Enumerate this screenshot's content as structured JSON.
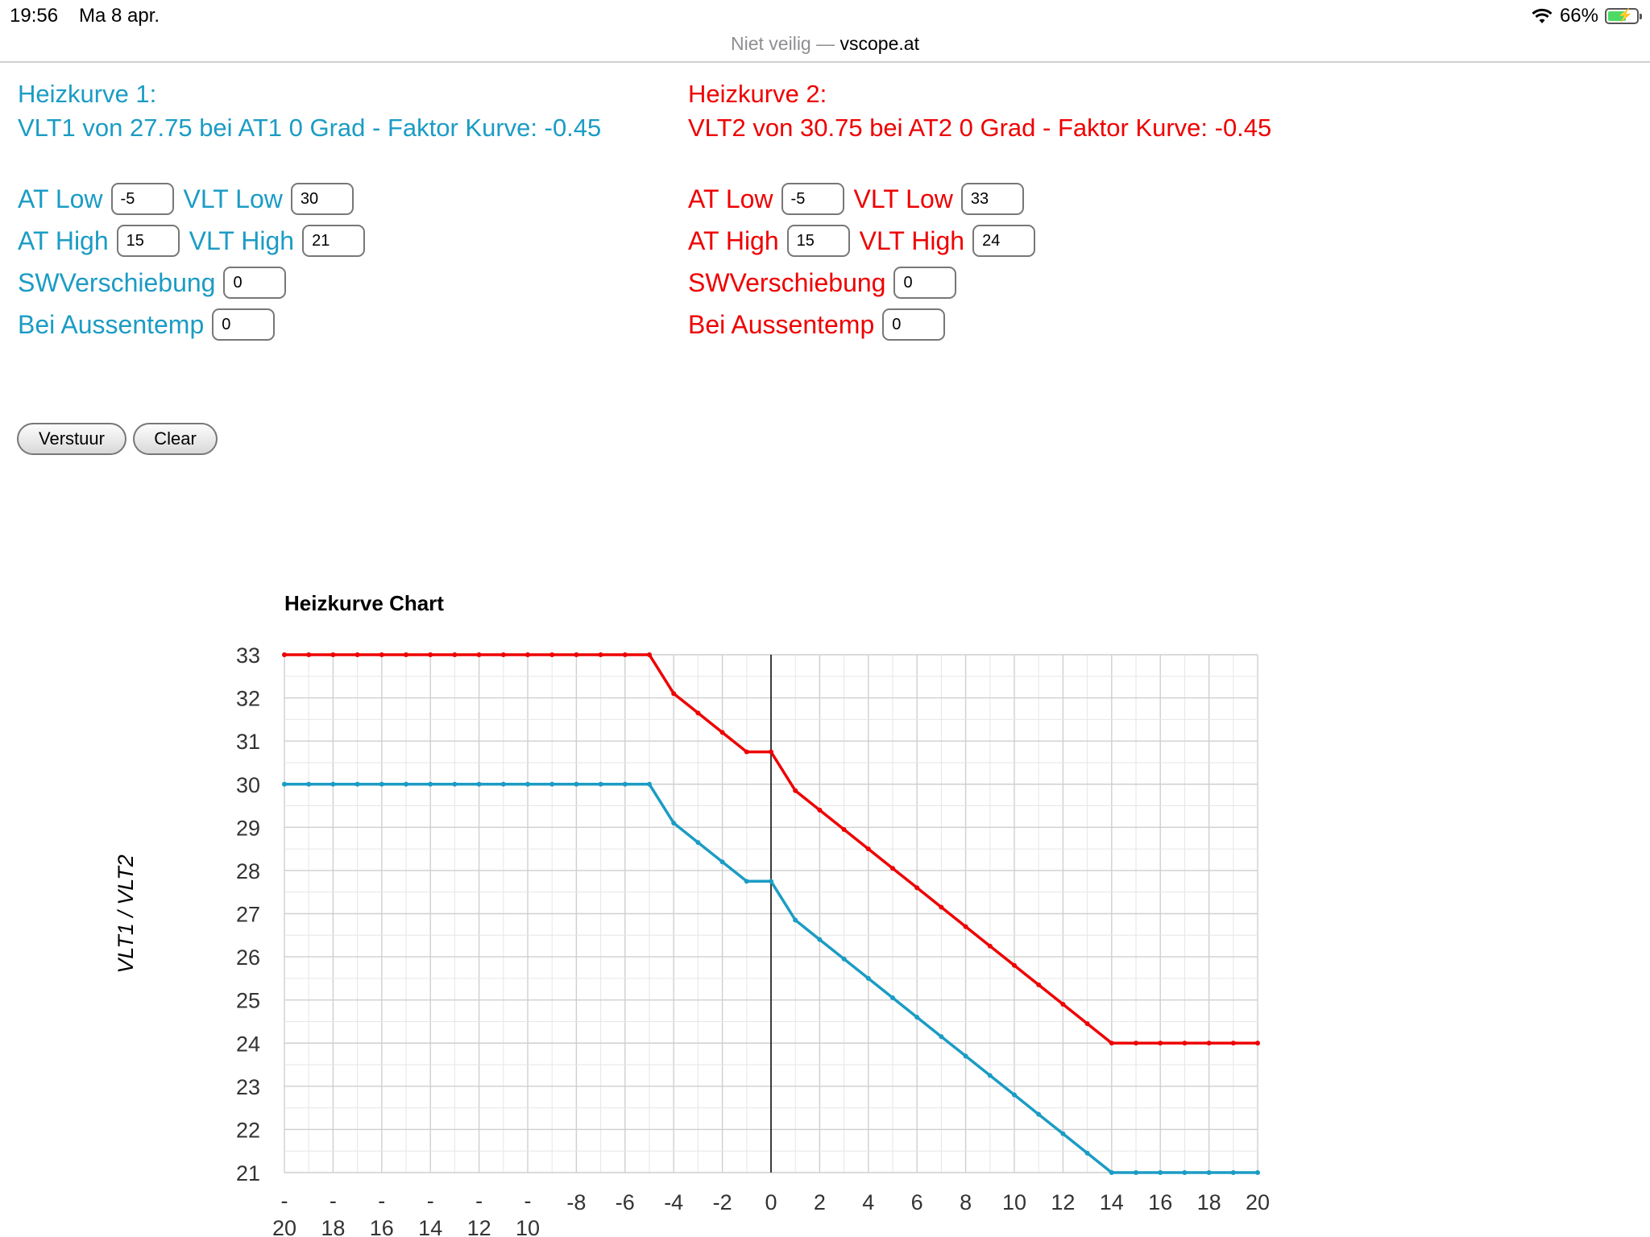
{
  "status": {
    "time": "19:56",
    "date": "Ma 8 apr.",
    "battery": "66%",
    "battery_level": 0.66
  },
  "browser": {
    "insecure_label": "Niet veilig",
    "separator": "—",
    "host": "vscope.at"
  },
  "curve1": {
    "heading_line1": "Heizkurve 1:",
    "heading_line2": "VLT1 von 27.75 bei AT1 0 Grad - Faktor Kurve: -0.45",
    "labels": {
      "at_low": "AT Low",
      "vlt_low": "VLT Low",
      "at_high": "AT High",
      "vlt_high": "VLT High",
      "sw": "SWVerschiebung",
      "bei": "Bei Aussentemp"
    },
    "values": {
      "at_low": "-5",
      "vlt_low": "30",
      "at_high": "15",
      "vlt_high": "21",
      "sw": "0",
      "bei": "0"
    },
    "color": "#1b9cc4"
  },
  "curve2": {
    "heading_line1": "Heizkurve 2:",
    "heading_line2": "VLT2 von 30.75 bei AT2 0 Grad - Faktor Kurve: -0.45",
    "labels": {
      "at_low": "AT Low",
      "vlt_low": "VLT Low",
      "at_high": "AT High",
      "vlt_high": "VLT High",
      "sw": "SWVerschiebung",
      "bei": "Bei Aussentemp"
    },
    "values": {
      "at_low": "-5",
      "vlt_low": "33",
      "at_high": "15",
      "vlt_high": "24",
      "sw": "0",
      "bei": "0"
    },
    "color": "#ee0000"
  },
  "buttons": {
    "send": "Verstuur",
    "clear": "Clear"
  },
  "chart_data": {
    "type": "line",
    "title": "Heizkurve Chart",
    "xlabel": "",
    "ylabel": "VLT1 / VLT2",
    "xlim": [
      -20,
      20
    ],
    "ylim": [
      21,
      33
    ],
    "x_ticks": [
      -20,
      -18,
      -16,
      -14,
      -12,
      -10,
      -8,
      -6,
      -4,
      -2,
      0,
      2,
      4,
      6,
      8,
      10,
      12,
      14,
      16,
      18,
      20
    ],
    "y_ticks": [
      21,
      22,
      23,
      24,
      25,
      26,
      27,
      28,
      29,
      30,
      31,
      32,
      33
    ],
    "grid": true,
    "x": [
      -20,
      -19,
      -18,
      -17,
      -16,
      -15,
      -14,
      -13,
      -12,
      -11,
      -10,
      -9,
      -8,
      -7,
      -6,
      -5,
      -4,
      -3,
      -2,
      -1,
      0,
      1,
      2,
      3,
      4,
      5,
      6,
      7,
      8,
      9,
      10,
      11,
      12,
      13,
      14,
      15,
      16,
      17,
      18,
      19,
      20
    ],
    "series": [
      {
        "color": "#1b9cc4",
        "values": [
          30,
          30,
          30,
          30,
          30,
          30,
          30,
          30,
          30,
          30,
          30,
          30,
          30,
          30,
          30,
          30,
          29.1,
          28.65,
          28.2,
          27.75,
          27.75,
          26.85,
          26.4,
          25.95,
          25.5,
          25.05,
          24.6,
          24.15,
          23.7,
          23.25,
          22.8,
          22.35,
          21.9,
          21.45,
          21,
          21,
          21,
          21,
          21,
          21,
          21
        ]
      },
      {
        "color": "#ee0000",
        "values": [
          33,
          33,
          33,
          33,
          33,
          33,
          33,
          33,
          33,
          33,
          33,
          33,
          33,
          33,
          33,
          33,
          32.1,
          31.65,
          31.2,
          30.75,
          30.75,
          29.85,
          29.4,
          28.95,
          28.5,
          28.05,
          27.6,
          27.15,
          26.7,
          26.25,
          25.8,
          25.35,
          24.9,
          24.45,
          24,
          24,
          24,
          24,
          24,
          24,
          24
        ]
      }
    ]
  }
}
